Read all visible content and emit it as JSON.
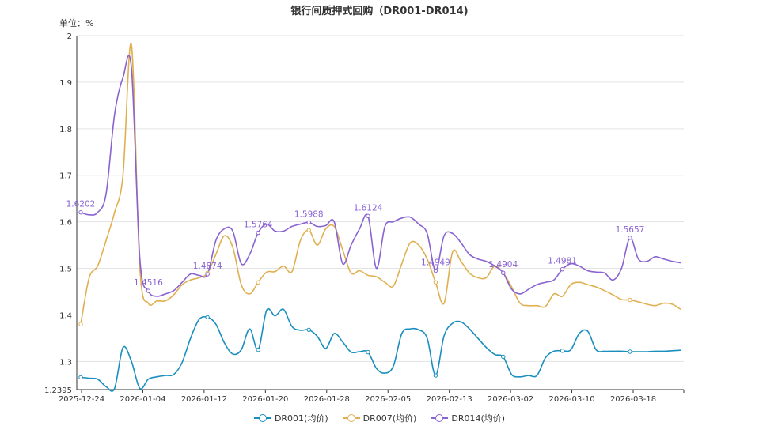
{
  "chart_data": {
    "type": "line",
    "title": "银行间质押式回购（DR001-DR014)",
    "unit_label": "单位：%",
    "ylim": [
      1.2395,
      2
    ],
    "y_ticks": [
      "2",
      "1.9",
      "1.8",
      "1.7",
      "1.6",
      "1.5",
      "1.4",
      "1.3",
      "1.2395"
    ],
    "x_ticks": [
      "2025-12-24",
      "2026-01-04",
      "2026-01-12",
      "2026-01-20",
      "2026-01-28",
      "2026-02-05",
      "2026-02-13",
      "2026-03-02",
      "2026-03-10",
      "2026-03-18"
    ],
    "grid": true,
    "legend_position": "bottom",
    "series": [
      {
        "name": "DR001(均价)",
        "color": "#1a8fbf",
        "values": [
          1.266,
          1.264,
          1.262,
          1.246,
          1.242,
          1.33,
          1.3,
          1.242,
          1.262,
          1.267,
          1.27,
          1.272,
          1.298,
          1.35,
          1.39,
          1.395,
          1.38,
          1.34,
          1.316,
          1.325,
          1.37,
          1.325,
          1.41,
          1.398,
          1.412,
          1.375,
          1.367,
          1.368,
          1.354,
          1.328,
          1.36,
          1.342,
          1.32,
          1.321,
          1.32,
          1.285,
          1.275,
          1.29,
          1.36,
          1.37,
          1.368,
          1.35,
          1.27,
          1.355,
          1.382,
          1.385,
          1.37,
          1.35,
          1.33,
          1.315,
          1.31,
          1.272,
          1.267,
          1.27,
          1.27,
          1.308,
          1.322,
          1.323,
          1.325,
          1.36,
          1.365,
          1.325,
          1.322,
          1.322,
          1.322,
          1.321,
          1.321,
          1.321,
          1.322,
          1.322,
          1.323,
          1.324
        ]
      },
      {
        "name": "DR007(均价)",
        "color": "#e0b050",
        "values": [
          1.38,
          1.48,
          1.505,
          1.56,
          1.62,
          1.7,
          1.98,
          1.5,
          1.425,
          1.43,
          1.43,
          1.443,
          1.465,
          1.475,
          1.48,
          1.49,
          1.53,
          1.57,
          1.545,
          1.465,
          1.445,
          1.47,
          1.492,
          1.493,
          1.505,
          1.493,
          1.56,
          1.582,
          1.55,
          1.585,
          1.59,
          1.54,
          1.49,
          1.495,
          1.485,
          1.482,
          1.47,
          1.462,
          1.51,
          1.555,
          1.55,
          1.52,
          1.47,
          1.425,
          1.535,
          1.515,
          1.49,
          1.48,
          1.48,
          1.505,
          1.49,
          1.46,
          1.425,
          1.42,
          1.42,
          1.418,
          1.445,
          1.44,
          1.465,
          1.47,
          1.465,
          1.46,
          1.452,
          1.443,
          1.433,
          1.432,
          1.428,
          1.423,
          1.42,
          1.425,
          1.423,
          1.412
        ]
      },
      {
        "name": "DR014(均价)",
        "color": "#8a63d2",
        "values": [
          1.6202,
          1.615,
          1.62,
          1.66,
          1.83,
          1.91,
          1.93,
          1.52,
          1.4516,
          1.44,
          1.445,
          1.452,
          1.47,
          1.488,
          1.485,
          1.4874,
          1.56,
          1.585,
          1.58,
          1.51,
          1.53,
          1.5764,
          1.595,
          1.58,
          1.58,
          1.59,
          1.595,
          1.5988,
          1.59,
          1.592,
          1.6,
          1.51,
          1.55,
          1.585,
          1.6124,
          1.5,
          1.59,
          1.6,
          1.608,
          1.61,
          1.595,
          1.575,
          1.4949,
          1.57,
          1.575,
          1.555,
          1.53,
          1.52,
          1.515,
          1.505,
          1.4904,
          1.455,
          1.445,
          1.455,
          1.465,
          1.47,
          1.475,
          1.4981,
          1.51,
          1.505,
          1.495,
          1.492,
          1.49,
          1.475,
          1.5,
          1.5657,
          1.52,
          1.515,
          1.525,
          1.52,
          1.515,
          1.512
        ]
      }
    ],
    "annotations": [
      {
        "series": 2,
        "index": 0,
        "label": "1.6202"
      },
      {
        "series": 2,
        "index": 8,
        "label": "1.4516"
      },
      {
        "series": 2,
        "index": 15,
        "label": "1.4874"
      },
      {
        "series": 2,
        "index": 21,
        "label": "1.5764"
      },
      {
        "series": 2,
        "index": 27,
        "label": "1.5988"
      },
      {
        "series": 2,
        "index": 34,
        "label": "1.6124"
      },
      {
        "series": 2,
        "index": 42,
        "label": "1.4949"
      },
      {
        "series": 2,
        "index": 50,
        "label": "1.4904"
      },
      {
        "series": 2,
        "index": 57,
        "label": "1.4981"
      },
      {
        "series": 2,
        "index": 65,
        "label": "1.5657"
      }
    ],
    "markers": [
      {
        "series": 0,
        "index": 0
      },
      {
        "series": 0,
        "index": 15
      },
      {
        "series": 0,
        "index": 21
      },
      {
        "series": 0,
        "index": 27
      },
      {
        "series": 0,
        "index": 34
      },
      {
        "series": 0,
        "index": 42
      },
      {
        "series": 0,
        "index": 50
      },
      {
        "series": 0,
        "index": 57
      },
      {
        "series": 0,
        "index": 65
      },
      {
        "series": 1,
        "index": 0
      },
      {
        "series": 1,
        "index": 15
      },
      {
        "series": 1,
        "index": 21
      },
      {
        "series": 1,
        "index": 27
      },
      {
        "series": 1,
        "index": 42
      },
      {
        "series": 1,
        "index": 50
      },
      {
        "series": 1,
        "index": 65
      }
    ]
  }
}
